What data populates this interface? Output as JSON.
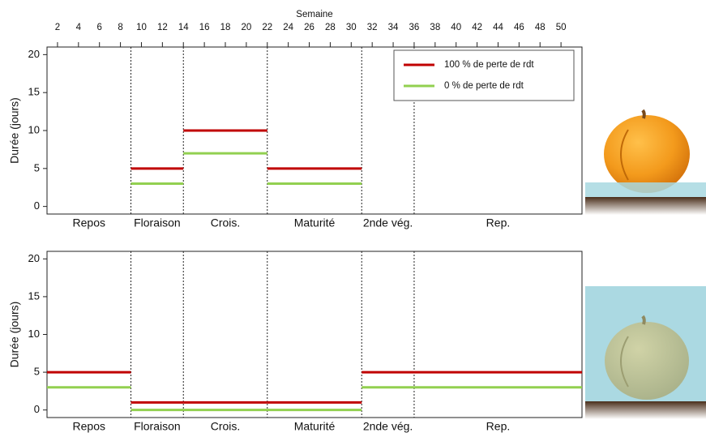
{
  "chart_data": [
    {
      "type": "step",
      "xlabel": "Semaine",
      "xlim": [
        1,
        52
      ],
      "xticks": [
        2,
        4,
        6,
        8,
        10,
        12,
        14,
        16,
        18,
        20,
        22,
        24,
        26,
        28,
        30,
        32,
        34,
        36,
        38,
        40,
        42,
        44,
        46,
        48,
        50
      ],
      "ylabel": "Durée (jours)",
      "ylim": [
        -1,
        21
      ],
      "yticks": [
        0,
        5,
        10,
        15,
        20
      ],
      "categories": [
        "Repos",
        "Floraison",
        "Crois.",
        "Maturité",
        "2nde vég.",
        "Rep."
      ],
      "bins": [
        1,
        9,
        14,
        22,
        31,
        36,
        52
      ],
      "legend": "upper right",
      "series": [
        {
          "name": "100 % de perte de rdt",
          "color": "#c00000",
          "values": [
            null,
            5,
            10,
            5,
            null,
            null
          ]
        },
        {
          "name": "0 % de perte de rdt",
          "color": "#92d050",
          "values": [
            null,
            3,
            7,
            3,
            null,
            null
          ]
        }
      ]
    },
    {
      "type": "step",
      "xlim": [
        1,
        52
      ],
      "ylabel": "Durée (jours)",
      "ylim": [
        -1,
        21
      ],
      "yticks": [
        0,
        5,
        10,
        15,
        20
      ],
      "categories": [
        "Repos",
        "Floraison",
        "Crois.",
        "Maturité",
        "2nde vég.",
        "Rep."
      ],
      "bins": [
        1,
        9,
        14,
        22,
        31,
        36,
        52
      ],
      "series": [
        {
          "color": "#c00000",
          "values": [
            5,
            1,
            1,
            1,
            5,
            5
          ]
        },
        {
          "color": "#92d050",
          "values": [
            3,
            0,
            0,
            0,
            3,
            3
          ]
        }
      ]
    }
  ]
}
